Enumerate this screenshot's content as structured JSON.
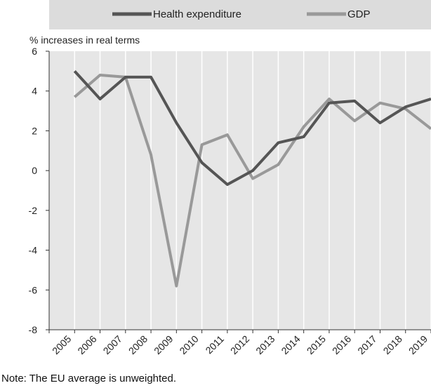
{
  "chart_data": {
    "type": "line",
    "ylabel": "% increases in real terms",
    "xlabel": "",
    "ylim": [
      -8,
      6
    ],
    "yticks": [
      6,
      4,
      2,
      0,
      -2,
      -4,
      -6,
      -8
    ],
    "categories": [
      "2005",
      "2006",
      "2007",
      "2008",
      "2009",
      "2010",
      "2011",
      "2012",
      "2013",
      "2014",
      "2015",
      "2016",
      "2017",
      "2018",
      "2019"
    ],
    "series": [
      {
        "name": "Health expenditure",
        "color": "#555555",
        "values": [
          5.0,
          3.6,
          4.7,
          4.7,
          2.4,
          0.4,
          -0.7,
          0.0,
          1.4,
          1.7,
          3.4,
          3.5,
          2.4,
          3.2,
          3.6
        ]
      },
      {
        "name": "GDP",
        "color": "#999999",
        "values": [
          3.7,
          4.8,
          4.7,
          0.8,
          -5.8,
          1.3,
          1.8,
          -0.4,
          0.3,
          2.2,
          3.6,
          2.5,
          3.4,
          3.1,
          2.1
        ]
      }
    ],
    "grid": "vertical",
    "legend_position": "top"
  },
  "note": "Note: The EU average is unweighted."
}
